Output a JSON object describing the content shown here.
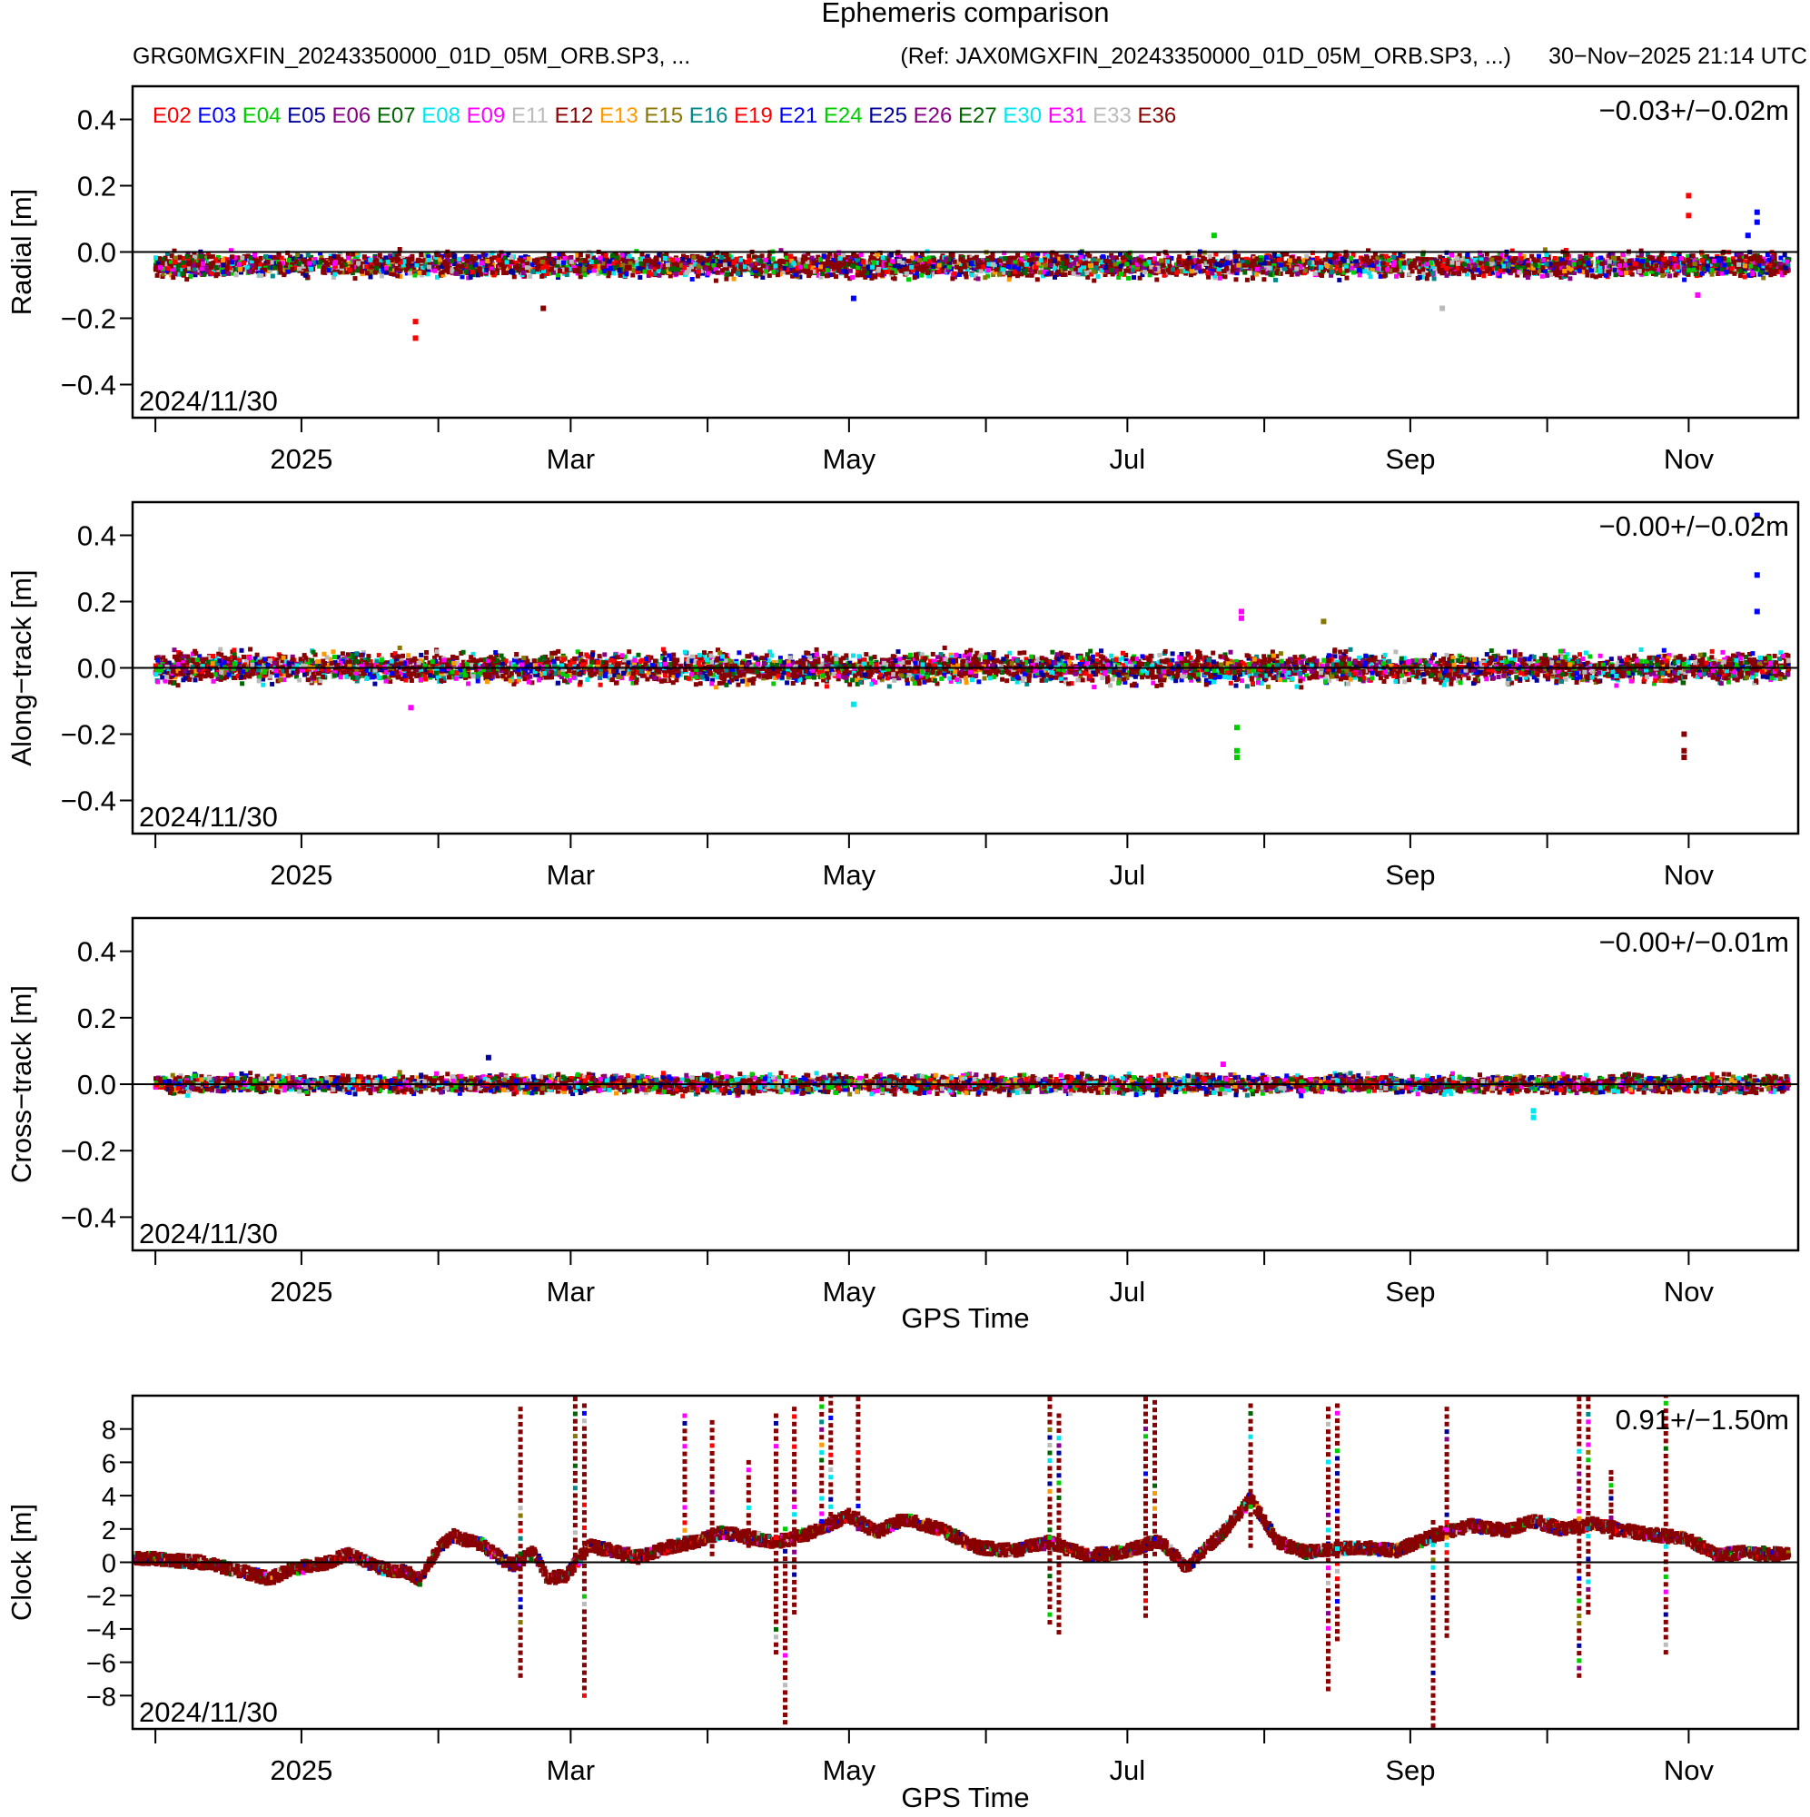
{
  "header": {
    "title": "Ephemeris comparison",
    "file_left": "GRG0MGXFIN_20243350000_01D_05M_ORB.SP3, ...",
    "file_ref": "(Ref: JAX0MGXFIN_20243350000_01D_05M_ORB.SP3, ...)",
    "generated": "30−Nov−2025 21:14 UTC"
  },
  "chart_data": {
    "type": "scatter",
    "x_range_days": [
      -5,
      360
    ],
    "x_ticks": [
      {
        "day": 32,
        "label": "2025"
      },
      {
        "day": 91,
        "label": "Mar"
      },
      {
        "day": 152,
        "label": "May"
      },
      {
        "day": 213,
        "label": "Jul"
      },
      {
        "day": 275,
        "label": "Sep"
      },
      {
        "day": 336,
        "label": "Nov"
      }
    ],
    "x_minor_days": [
      0,
      62,
      121,
      182,
      243,
      305,
      366
    ],
    "start_label": "2024/11/30",
    "xlabel": "GPS Time",
    "legend": [
      {
        "name": "E02",
        "color": "#ff0000"
      },
      {
        "name": "E03",
        "color": "#0000ff"
      },
      {
        "name": "E04",
        "color": "#00cc00"
      },
      {
        "name": "E05",
        "color": "#000099"
      },
      {
        "name": "E06",
        "color": "#880088"
      },
      {
        "name": "E07",
        "color": "#006600"
      },
      {
        "name": "E08",
        "color": "#00e5ee"
      },
      {
        "name": "E09",
        "color": "#ff00ff"
      },
      {
        "name": "E11",
        "color": "#bbbbbb"
      },
      {
        "name": "E12",
        "color": "#880000"
      },
      {
        "name": "E13",
        "color": "#ff9900"
      },
      {
        "name": "E15",
        "color": "#887700"
      },
      {
        "name": "E16",
        "color": "#008888"
      },
      {
        "name": "E19",
        "color": "#ff0000"
      },
      {
        "name": "E21",
        "color": "#0000ff"
      },
      {
        "name": "E24",
        "color": "#00cc00"
      },
      {
        "name": "E25",
        "color": "#000099"
      },
      {
        "name": "E26",
        "color": "#880088"
      },
      {
        "name": "E27",
        "color": "#006600"
      },
      {
        "name": "E30",
        "color": "#00e5ee"
      },
      {
        "name": "E31",
        "color": "#ff00ff"
      },
      {
        "name": "E33",
        "color": "#bbbbbb"
      },
      {
        "name": "E36",
        "color": "#880000"
      }
    ],
    "panels": [
      {
        "id": "radial",
        "ylabel": "Radial [m]",
        "ylim": [
          -0.5,
          0.5
        ],
        "yticks": [
          -0.4,
          -0.2,
          0.0,
          0.2,
          0.4
        ],
        "ytick_labels": [
          "−0.4",
          "−0.2",
          "0.0",
          "0.2",
          "0.4"
        ],
        "stat": "−0.03+/−0.02m",
        "band": {
          "center": -0.04,
          "half_width": 0.04
        },
        "outliers": [
          {
            "day": 57,
            "value": -0.26,
            "color": "#ff0000"
          },
          {
            "day": 57,
            "value": -0.21,
            "color": "#ff0000"
          },
          {
            "day": 85,
            "value": -0.17,
            "color": "#880000"
          },
          {
            "day": 153,
            "value": -0.14,
            "color": "#0000ff"
          },
          {
            "day": 336,
            "value": 0.17,
            "color": "#ff0000"
          },
          {
            "day": 336,
            "value": 0.11,
            "color": "#ff0000"
          },
          {
            "day": 351,
            "value": 0.12,
            "color": "#0000ff"
          },
          {
            "day": 351,
            "value": 0.09,
            "color": "#0000ff"
          },
          {
            "day": 349,
            "value": 0.05,
            "color": "#0000ff"
          },
          {
            "day": 338,
            "value": -0.13,
            "color": "#ff00ff"
          },
          {
            "day": 232,
            "value": 0.05,
            "color": "#00cc00"
          },
          {
            "day": 282,
            "value": -0.17,
            "color": "#bbbbbb"
          }
        ]
      },
      {
        "id": "along",
        "ylabel": "Along−track [m]",
        "ylim": [
          -0.5,
          0.5
        ],
        "yticks": [
          -0.4,
          -0.2,
          0.0,
          0.2,
          0.4
        ],
        "ytick_labels": [
          "−0.4",
          "−0.2",
          "0.0",
          "0.2",
          "0.4"
        ],
        "stat": "−0.00+/−0.02m",
        "band": {
          "center": 0.0,
          "half_width": 0.05
        },
        "outliers": [
          {
            "day": 351,
            "value": 0.46,
            "color": "#0000ff"
          },
          {
            "day": 351,
            "value": 0.28,
            "color": "#0000ff"
          },
          {
            "day": 351,
            "value": 0.17,
            "color": "#0000ff"
          },
          {
            "day": 238,
            "value": 0.17,
            "color": "#ff00ff"
          },
          {
            "day": 238,
            "value": 0.15,
            "color": "#ff00ff"
          },
          {
            "day": 256,
            "value": 0.14,
            "color": "#887700"
          },
          {
            "day": 237,
            "value": -0.18,
            "color": "#00cc00"
          },
          {
            "day": 237,
            "value": -0.25,
            "color": "#00cc00"
          },
          {
            "day": 237,
            "value": -0.27,
            "color": "#00cc00"
          },
          {
            "day": 335,
            "value": -0.2,
            "color": "#880000"
          },
          {
            "day": 335,
            "value": -0.25,
            "color": "#880000"
          },
          {
            "day": 335,
            "value": -0.27,
            "color": "#880000"
          },
          {
            "day": 56,
            "value": -0.12,
            "color": "#ff00ff"
          },
          {
            "day": 153,
            "value": -0.11,
            "color": "#00e5ee"
          }
        ]
      },
      {
        "id": "cross",
        "ylabel": "Cross−track [m]",
        "ylim": [
          -0.5,
          0.5
        ],
        "yticks": [
          -0.4,
          -0.2,
          0.0,
          0.2,
          0.4
        ],
        "ytick_labels": [
          "−0.4",
          "−0.2",
          "0.0",
          "0.2",
          "0.4"
        ],
        "stat": "−0.00+/−0.01m",
        "band": {
          "center": 0.0,
          "half_width": 0.03
        },
        "outliers": [
          {
            "day": 302,
            "value": -0.08,
            "color": "#00e5ee"
          },
          {
            "day": 302,
            "value": -0.1,
            "color": "#00e5ee"
          },
          {
            "day": 234,
            "value": 0.06,
            "color": "#ff00ff"
          },
          {
            "day": 73,
            "value": 0.08,
            "color": "#000099"
          }
        ]
      },
      {
        "id": "clock",
        "ylabel": "Clock [m]",
        "ylim": [
          -10,
          10
        ],
        "yticks": [
          -8,
          -6,
          -4,
          -2,
          0,
          2,
          4,
          6,
          8
        ],
        "ytick_labels": [
          "−8",
          "−6",
          "−4",
          "−2",
          "0",
          "2",
          "4",
          "6",
          "8"
        ],
        "stat": "0.91+/−1.50m",
        "trend_days": [
          -5,
          10,
          20,
          25,
          30,
          38,
          42,
          50,
          55,
          58,
          62,
          65,
          72,
          78,
          83,
          86,
          90,
          95,
          100,
          106,
          112,
          118,
          124,
          130,
          136,
          142,
          147,
          152,
          158,
          164,
          172,
          180,
          188,
          196,
          204,
          212,
          220,
          226,
          234,
          240,
          246,
          252,
          258,
          264,
          272,
          280,
          288,
          296,
          302,
          308,
          315,
          322,
          330,
          336,
          342,
          348,
          354,
          358
        ],
        "trend_values": [
          0.3,
          0.0,
          -0.6,
          -1.0,
          -0.4,
          0.0,
          0.5,
          -0.4,
          -0.6,
          -1.0,
          0.8,
          1.6,
          1.0,
          -0.2,
          0.6,
          -1.0,
          -0.8,
          1.0,
          0.7,
          0.3,
          0.9,
          1.2,
          1.8,
          1.5,
          1.2,
          1.6,
          2.2,
          2.8,
          1.8,
          2.6,
          2.0,
          0.9,
          0.7,
          1.2,
          0.4,
          0.6,
          1.3,
          -0.3,
          1.8,
          3.8,
          1.2,
          0.6,
          0.8,
          0.9,
          0.7,
          1.6,
          2.2,
          1.9,
          2.5,
          2.0,
          2.3,
          1.9,
          1.6,
          1.4,
          0.4,
          0.6,
          0.5,
          0.5
        ],
        "spikes": [
          {
            "day": 80,
            "low": -6.8,
            "high": 9.2
          },
          {
            "day": 92,
            "low": 0.0,
            "high": 9.8
          },
          {
            "day": 94,
            "low": -8.0,
            "high": 9.4
          },
          {
            "day": 116,
            "low": 1.0,
            "high": 8.8
          },
          {
            "day": 122,
            "low": 0.5,
            "high": 8.4
          },
          {
            "day": 130,
            "low": 1.0,
            "high": 6.0
          },
          {
            "day": 136,
            "low": -5.4,
            "high": 8.8
          },
          {
            "day": 138,
            "low": -9.6,
            "high": 2.0
          },
          {
            "day": 140,
            "low": -3.0,
            "high": 9.2
          },
          {
            "day": 146,
            "low": 2.0,
            "high": 9.8
          },
          {
            "day": 148,
            "low": 2.0,
            "high": 10.0
          },
          {
            "day": 154,
            "low": 2.0,
            "high": 9.8
          },
          {
            "day": 196,
            "low": -3.6,
            "high": 9.8
          },
          {
            "day": 198,
            "low": -4.2,
            "high": 8.8
          },
          {
            "day": 217,
            "low": -3.2,
            "high": 9.8
          },
          {
            "day": 219,
            "low": 0.5,
            "high": 9.6
          },
          {
            "day": 240,
            "low": 1.0,
            "high": 9.4
          },
          {
            "day": 257,
            "low": -7.6,
            "high": 9.2
          },
          {
            "day": 259,
            "low": -4.6,
            "high": 9.4
          },
          {
            "day": 280,
            "low": -9.8,
            "high": 2.4
          },
          {
            "day": 283,
            "low": -4.4,
            "high": 9.2
          },
          {
            "day": 312,
            "low": -6.8,
            "high": 9.8
          },
          {
            "day": 314,
            "low": -3.0,
            "high": 9.8
          },
          {
            "day": 319,
            "low": 1.5,
            "high": 5.4
          },
          {
            "day": 331,
            "low": -5.4,
            "high": 10.0
          }
        ]
      }
    ]
  }
}
